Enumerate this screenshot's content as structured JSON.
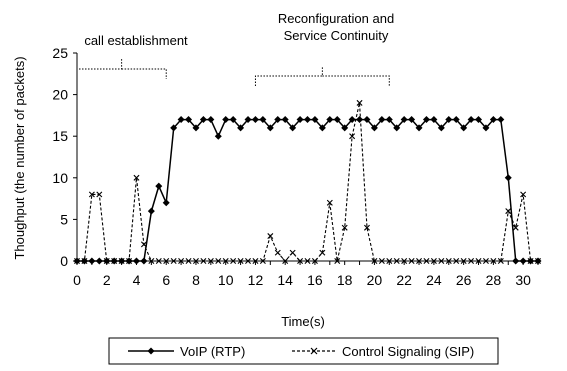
{
  "chart_data": {
    "type": "line",
    "xlabel": "Time(s)",
    "ylabel": "Thoughput (the number of packets)",
    "xlim": [
      0,
      31
    ],
    "ylim": [
      0,
      25
    ],
    "x_ticks": [
      0,
      2,
      4,
      6,
      8,
      10,
      12,
      14,
      16,
      18,
      20,
      22,
      24,
      26,
      28,
      30
    ],
    "y_ticks": [
      0,
      5,
      10,
      15,
      20,
      25
    ],
    "grid": false,
    "legend_position": "bottom",
    "annotations": [
      {
        "text": "call establishment",
        "x_range": [
          0,
          6
        ]
      },
      {
        "text": "Reconfiguration and\nService Continuity",
        "x_range": [
          12,
          21
        ]
      }
    ],
    "series": [
      {
        "name": "VoIP (RTP)",
        "style": "solid",
        "marker": "diamond",
        "color": "#000000",
        "x": [
          0,
          0.5,
          1,
          1.5,
          2,
          2.5,
          3,
          3.5,
          4,
          4.5,
          5,
          5.5,
          6,
          6.5,
          7,
          7.5,
          8,
          8.5,
          9,
          9.5,
          10,
          10.5,
          11,
          11.5,
          12,
          12.5,
          13,
          13.5,
          14,
          14.5,
          15,
          15.5,
          16,
          16.5,
          17,
          17.5,
          18,
          18.5,
          19,
          19.5,
          20,
          20.5,
          21,
          21.5,
          22,
          22.5,
          23,
          23.5,
          24,
          24.5,
          25,
          25.5,
          26,
          26.5,
          27,
          27.5,
          28,
          28.5,
          29,
          29.5,
          30,
          30.5,
          31
        ],
        "y": [
          0,
          0,
          0,
          0,
          0,
          0,
          0,
          0,
          0,
          0,
          6,
          9,
          7,
          16,
          17,
          17,
          16,
          17,
          17,
          15,
          17,
          17,
          16,
          17,
          17,
          17,
          16,
          17,
          17,
          16,
          17,
          17,
          17,
          16,
          17,
          17,
          16,
          17,
          17,
          17,
          16,
          17,
          17,
          16,
          17,
          17,
          16,
          17,
          17,
          16,
          17,
          17,
          16,
          17,
          17,
          16,
          17,
          17,
          10,
          0,
          0,
          0,
          0
        ]
      },
      {
        "name": "Control Signaling (SIP)",
        "style": "dashed",
        "marker": "x",
        "color": "#000000",
        "x": [
          0,
          0.5,
          1,
          1.5,
          2,
          2.5,
          3,
          3.5,
          4,
          4.5,
          5,
          5.5,
          6,
          6.5,
          7,
          7.5,
          8,
          8.5,
          9,
          9.5,
          10,
          10.5,
          11,
          11.5,
          12,
          12.5,
          13,
          13.5,
          14,
          14.5,
          15,
          15.5,
          16,
          16.5,
          17,
          17.5,
          18,
          18.5,
          19,
          19.5,
          20,
          20.5,
          21,
          21.5,
          22,
          22.5,
          23,
          23.5,
          24,
          24.5,
          25,
          25.5,
          26,
          26.5,
          27,
          27.5,
          28,
          28.5,
          29,
          29.5,
          30,
          30.5,
          31
        ],
        "y": [
          0,
          0,
          8,
          8,
          0,
          0,
          0,
          0,
          10,
          2,
          0,
          0,
          0,
          0,
          0,
          0,
          0,
          0,
          0,
          0,
          0,
          0,
          0,
          0,
          0,
          0,
          3,
          1,
          0,
          1,
          0,
          0,
          0,
          1,
          7,
          0,
          4,
          15,
          19,
          4,
          0,
          0,
          0,
          0,
          0,
          0,
          0,
          0,
          0,
          0,
          0,
          0,
          0,
          0,
          0,
          0,
          0,
          0,
          6,
          4,
          8,
          0,
          0
        ]
      }
    ]
  }
}
